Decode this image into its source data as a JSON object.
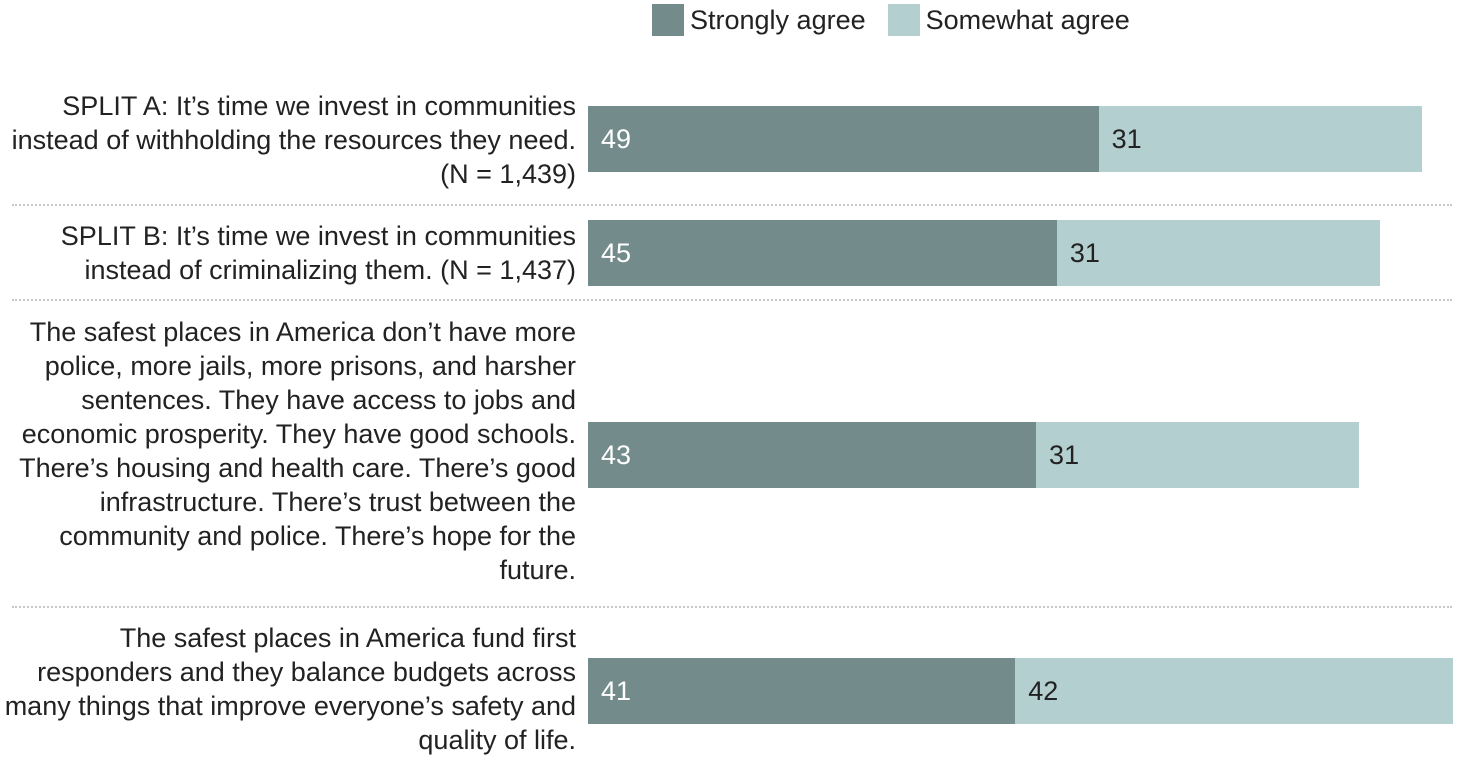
{
  "legend": {
    "strongly": "Strongly agree",
    "somewhat": "Somewhat agree"
  },
  "colors": {
    "strongly": "#738b8b",
    "somewhat": "#b4cfd0",
    "value_text_dark_bar": "#ffffff",
    "value_text_light_bar": "#222222"
  },
  "chart_data": {
    "type": "bar",
    "orientation": "horizontal",
    "stacked": true,
    "categories": [
      "SPLIT A: It’s time we invest in communities instead of withholding the resources they need. (N = 1,439)",
      "SPLIT B: It’s time we invest in communities instead of criminalizing them. (N = 1,437)",
      "The safest places in America don’t have more police, more jails, more prisons, and harsher sentences. They have access to jobs and economic prosperity. They have good schools. There’s housing and health care. There’s good infrastructure. There’s trust between the community and police. There’s hope for the future.",
      "The safest places in America fund first responders and they balance budgets across many things that improve everyone’s safety and quality of life."
    ],
    "series": [
      {
        "name": "Strongly agree",
        "values": [
          49,
          45,
          43,
          41
        ]
      },
      {
        "name": "Somewhat agree",
        "values": [
          31,
          31,
          31,
          42
        ]
      }
    ],
    "legend_position": "top",
    "grid": false
  }
}
